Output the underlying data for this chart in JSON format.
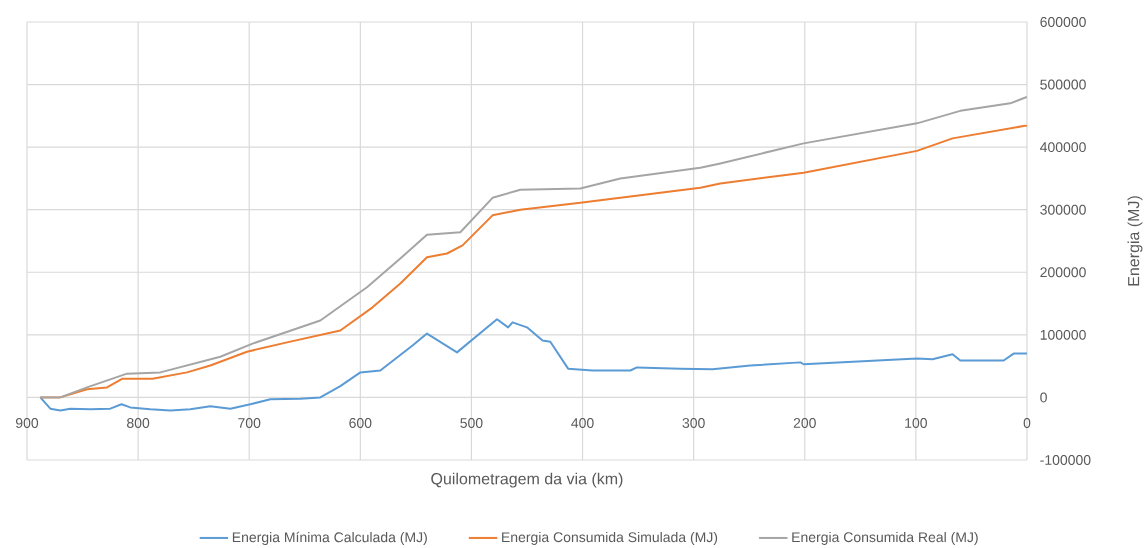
{
  "chart_data": {
    "type": "line",
    "xlabel": "Quilometragem da via (km)",
    "ylabel": "Energia (MJ)",
    "xlim": [
      900,
      0
    ],
    "xticks": [
      900,
      800,
      700,
      600,
      500,
      400,
      300,
      200,
      100,
      0
    ],
    "ylim": [
      -100000,
      600000
    ],
    "yticks": [
      -100000,
      0,
      100000,
      200000,
      300000,
      400000,
      500000,
      600000
    ],
    "grid": true,
    "legend": "bottom",
    "line_style": "solid",
    "series": [
      {
        "name": "Energia Mínima Calculada (MJ)",
        "color": "#5b9bd5",
        "x": [
          888,
          879,
          870,
          861,
          843,
          825,
          815,
          807,
          789,
          771,
          753,
          735,
          717,
          699,
          681,
          654,
          636,
          618,
          600,
          582,
          553,
          540,
          513,
          477,
          467,
          463,
          450,
          436,
          429,
          413,
          391,
          357,
          351,
          312,
          283,
          249,
          204,
          201,
          99,
          85,
          67,
          60,
          21,
          12,
          0
        ],
        "values": [
          0,
          -18000,
          -21000,
          -18000,
          -19000,
          -18000,
          -11000,
          -16000,
          -19000,
          -21000,
          -19000,
          -14000,
          -18000,
          -11000,
          -3000,
          -2000,
          0,
          18000,
          40000,
          43000,
          83000,
          102000,
          72000,
          125000,
          112000,
          120000,
          112000,
          91000,
          89000,
          46000,
          43000,
          43000,
          48000,
          46000,
          45000,
          51000,
          56000,
          53000,
          62000,
          61000,
          69000,
          59000,
          59000,
          70000,
          70000
        ]
      },
      {
        "name": "Energia Consumida Simulada (MJ)",
        "color": "#ed7d31",
        "x": [
          888,
          870,
          846,
          828,
          814,
          787,
          756,
          735,
          702,
          666,
          618,
          589,
          564,
          540,
          522,
          508,
          481,
          456,
          402,
          348,
          294,
          276,
          201,
          99,
          67,
          2,
          0
        ],
        "values": [
          0,
          0,
          13000,
          16000,
          30000,
          30000,
          40000,
          51000,
          73000,
          88000,
          107000,
          144000,
          182000,
          224000,
          230000,
          243000,
          291000,
          300000,
          311000,
          323000,
          335000,
          342000,
          359000,
          394000,
          414000,
          434000,
          434000
        ]
      },
      {
        "name": "Energia Consumida Real (MJ)",
        "color": "#a5a5a5",
        "x": [
          888,
          870,
          846,
          810,
          780,
          726,
          697,
          636,
          594,
          564,
          540,
          510,
          481,
          456,
          402,
          366,
          294,
          276,
          201,
          99,
          60,
          15,
          2,
          0
        ],
        "values": [
          0,
          0,
          16000,
          38000,
          40000,
          65000,
          86000,
          123000,
          176000,
          222000,
          260000,
          264000,
          319000,
          332000,
          334000,
          350000,
          367000,
          374000,
          406000,
          438000,
          458000,
          470000,
          479000,
          480000
        ]
      }
    ]
  }
}
